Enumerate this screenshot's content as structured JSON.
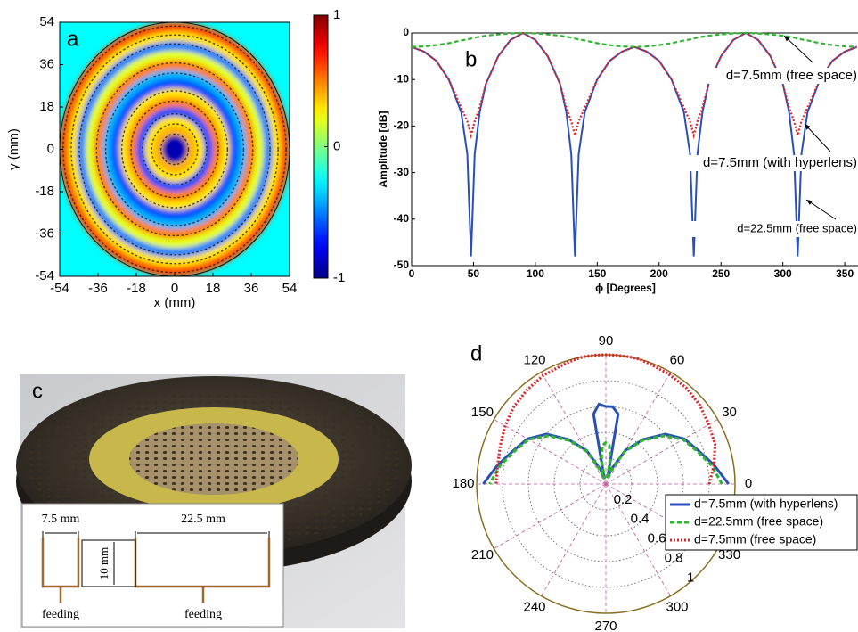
{
  "chart_data": [
    {
      "type": "heatmap",
      "label": "a",
      "xlabel": "x (mm)",
      "ylabel": "y (mm)",
      "xlim": [
        -54,
        54
      ],
      "xticks": [
        -54,
        -36,
        -18,
        0,
        18,
        36,
        54
      ],
      "ylim": [
        -54,
        54
      ],
      "yticks": [
        -54,
        -36,
        -18,
        0,
        18,
        36,
        54
      ],
      "colormap": "jet",
      "clim": [
        -1,
        1
      ],
      "cticks": [
        -1,
        0,
        1
      ],
      "background": -0.25,
      "rings": {
        "r": [
          54,
          50,
          46,
          42,
          38,
          34,
          30,
          26,
          22,
          18,
          14,
          10,
          6
        ],
        "values": [
          0.6,
          0.3,
          -0.5,
          0.2,
          0.5,
          -0.4,
          -0.6,
          0.3,
          0.5,
          -0.6,
          0.3,
          0.4,
          -0.9
        ]
      }
    },
    {
      "type": "line",
      "label": "b",
      "xlabel": "ϕ [Degrees]",
      "ylabel": "Amplitude [dB]",
      "xlim": [
        0,
        360
      ],
      "xticks": [
        0,
        50,
        100,
        150,
        200,
        250,
        300,
        350
      ],
      "ylim": [
        -50,
        0
      ],
      "yticks": [
        -50,
        -40,
        -30,
        -20,
        -10,
        0
      ],
      "x": [
        0,
        10,
        20,
        30,
        40,
        45,
        48,
        51,
        55,
        60,
        70,
        80,
        90,
        100,
        110,
        120,
        125,
        129,
        132,
        135,
        140,
        150,
        160,
        170,
        180,
        190,
        200,
        210,
        220,
        225,
        228,
        231,
        235,
        240,
        250,
        260,
        270,
        280,
        290,
        300,
        305,
        309,
        312,
        315,
        320,
        330,
        340,
        350,
        360
      ],
      "series": [
        {
          "name": "d=22.5mm (free space)",
          "color": "#2a4fb8",
          "linestyle": "solid",
          "values": [
            -3,
            -4,
            -6,
            -10,
            -17,
            -26,
            -48,
            -26,
            -17,
            -11,
            -5,
            -1.5,
            0,
            -1.5,
            -5,
            -11,
            -17,
            -26,
            -48,
            -26,
            -17,
            -10,
            -6,
            -4,
            -3,
            -4,
            -6,
            -10,
            -17,
            -26,
            -48,
            -26,
            -17,
            -11,
            -5,
            -1.5,
            0,
            -1.5,
            -5,
            -11,
            -17,
            -26,
            -48,
            -26,
            -17,
            -10,
            -6,
            -4,
            -3
          ]
        },
        {
          "name": "d=7.5mm (with hyperlens)",
          "color": "#e0252a",
          "linestyle": "dotted",
          "values": [
            -3,
            -4,
            -6,
            -10,
            -16,
            -19,
            -22,
            -19,
            -16,
            -11,
            -5,
            -1.5,
            0,
            -1.5,
            -5,
            -11,
            -16,
            -19,
            -22,
            -19,
            -16,
            -10,
            -6,
            -4,
            -3,
            -4,
            -6,
            -10,
            -16,
            -19,
            -22,
            -19,
            -16,
            -11,
            -5,
            -1.5,
            0,
            -1.5,
            -5,
            -11,
            -16,
            -19,
            -22,
            -19,
            -16,
            -10,
            -6,
            -4,
            -3
          ]
        },
        {
          "name": "d=7.5mm (free space)",
          "color": "#2fb52f",
          "linestyle": "dashed",
          "values": [
            -3,
            -2.9,
            -2.6,
            -2.2,
            -1.6,
            -1.4,
            -1.2,
            -1.0,
            -0.8,
            -0.6,
            -0.3,
            -0.1,
            0,
            -0.1,
            -0.3,
            -0.6,
            -0.8,
            -1.0,
            -1.2,
            -1.4,
            -1.6,
            -2.2,
            -2.6,
            -2.9,
            -3,
            -2.9,
            -2.6,
            -2.2,
            -1.6,
            -1.4,
            -1.2,
            -1.0,
            -0.8,
            -0.6,
            -0.3,
            -0.1,
            0,
            -0.1,
            -0.3,
            -0.6,
            -0.8,
            -1.0,
            -1.2,
            -1.4,
            -1.6,
            -2.2,
            -2.6,
            -2.9,
            -3
          ]
        }
      ]
    },
    {
      "type": "polar",
      "label": "d",
      "legend": "lower right",
      "rlim": [
        0,
        1
      ],
      "rticks": [
        0.2,
        0.4,
        0.6,
        0.8,
        1
      ],
      "thetaticks": [
        0,
        30,
        60,
        90,
        120,
        150,
        180,
        210,
        240,
        270,
        300,
        330
      ],
      "theta": [
        0,
        10,
        20,
        30,
        40,
        50,
        60,
        70,
        75,
        80,
        85,
        90,
        95,
        100,
        105,
        110,
        120,
        130,
        140,
        150,
        160,
        170,
        180
      ],
      "series": [
        {
          "name": "d=7.5mm (with hyperlens)",
          "color": "#2a4fb8",
          "linestyle": "solid",
          "values": [
            0.95,
            0.85,
            0.76,
            0.7,
            0.6,
            0.45,
            0.3,
            0.12,
            0.05,
            0.55,
            0.6,
            0.6,
            0.62,
            0.55,
            0.05,
            0.12,
            0.3,
            0.45,
            0.6,
            0.7,
            0.76,
            0.85,
            0.95
          ]
        },
        {
          "name": "d=22.5mm (free space)",
          "color": "#2fb52f",
          "linestyle": "dashed",
          "values": [
            0.9,
            0.83,
            0.75,
            0.69,
            0.58,
            0.44,
            0.29,
            0.1,
            0.04,
            0.2,
            0.3,
            0.32,
            0.3,
            0.2,
            0.04,
            0.1,
            0.29,
            0.44,
            0.58,
            0.69,
            0.75,
            0.83,
            0.9
          ]
        },
        {
          "name": "d=7.5mm (free space)",
          "color": "#e0252a",
          "linestyle": "dotted",
          "values": [
            0.8,
            0.85,
            0.9,
            0.92,
            0.95,
            0.97,
            0.98,
            0.99,
            1,
            1,
            1,
            1,
            1,
            1,
            0.99,
            0.98,
            0.97,
            0.95,
            0.93,
            0.9,
            0.87,
            0.85,
            0.85
          ]
        }
      ]
    }
  ],
  "photo": {
    "label": "c",
    "inset": {
      "dimensions": [
        "7.5 mm",
        "10 mm",
        "22.5 mm"
      ],
      "feeds": [
        "feeding",
        "feeding"
      ]
    }
  }
}
